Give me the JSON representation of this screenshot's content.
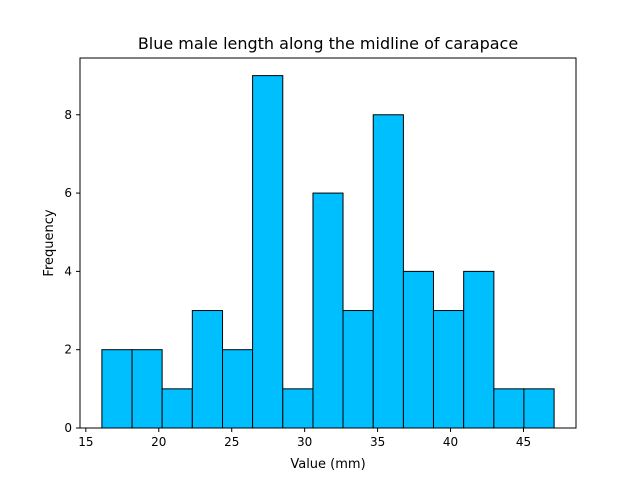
{
  "chart_data": {
    "type": "bar",
    "title": "Blue male length along the midline of carapace",
    "xlabel": "Value (mm)",
    "ylabel": "Frequency",
    "xlim": [
      14.6,
      48.6
    ],
    "ylim": [
      0,
      9.45
    ],
    "xticks": [
      15,
      20,
      25,
      30,
      35,
      40,
      45
    ],
    "yticks": [
      0,
      2,
      4,
      6,
      8
    ],
    "bin_edges": [
      16.1,
      18.17,
      20.23,
      22.3,
      24.37,
      26.43,
      28.5,
      30.57,
      32.63,
      34.7,
      36.77,
      38.83,
      40.9,
      42.97,
      45.03,
      47.1
    ],
    "values": [
      2,
      2,
      1,
      3,
      2,
      9,
      1,
      6,
      3,
      8,
      4,
      3,
      4,
      1,
      1
    ],
    "bar_color": "#00bfff",
    "edge_color": "#000000",
    "grid": false
  }
}
